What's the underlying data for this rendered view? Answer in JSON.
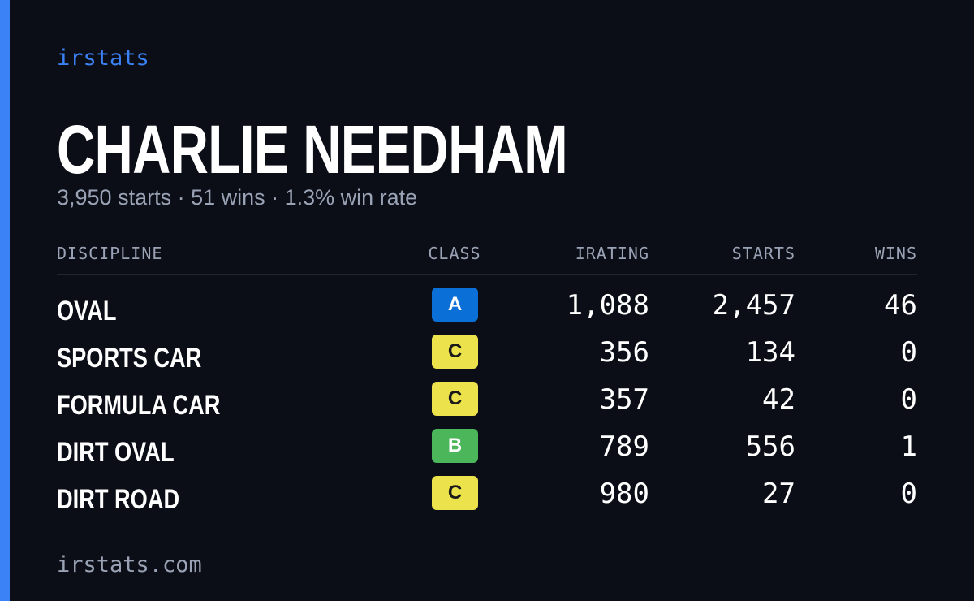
{
  "brand": "irstats",
  "name": "CHARLIE NEEDHAM",
  "summary": "3,950 starts · 51 wins · 1.3% win rate",
  "table": {
    "headers": [
      "DISCIPLINE",
      "CLASS",
      "IRATING",
      "STARTS",
      "WINS"
    ],
    "rows": [
      {
        "discipline": "OVAL",
        "class": "A",
        "class_color": "#0b6fd8",
        "irating": "1,088",
        "starts": "2,457",
        "wins": "46"
      },
      {
        "discipline": "SPORTS CAR",
        "class": "C",
        "class_color": "#ece24c",
        "irating": "356",
        "starts": "134",
        "wins": "0"
      },
      {
        "discipline": "FORMULA CAR",
        "class": "C",
        "class_color": "#ece24c",
        "irating": "357",
        "starts": "42",
        "wins": "0"
      },
      {
        "discipline": "DIRT OVAL",
        "class": "B",
        "class_color": "#4cb65a",
        "irating": "789",
        "starts": "556",
        "wins": "1"
      },
      {
        "discipline": "DIRT ROAD",
        "class": "C",
        "class_color": "#ece24c",
        "irating": "980",
        "starts": "27",
        "wins": "0"
      }
    ]
  },
  "footer": "irstats.com"
}
